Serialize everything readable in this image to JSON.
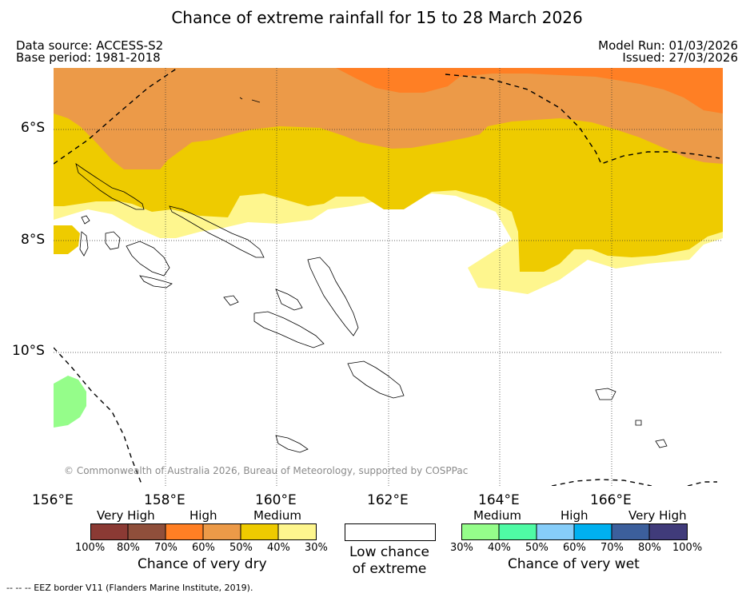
{
  "title": "Chance of extreme rainfall for 15 to 28 March 2026",
  "meta": {
    "data_source": "Data source: ACCESS-S2",
    "base_period": "Base period: 1981-2018",
    "model_run": "Model Run: 01/03/2026",
    "issued": "Issued: 27/03/2026"
  },
  "latitude_labels": [
    "6°S",
    "8°S",
    "10°S"
  ],
  "longitude_labels": [
    "156°E",
    "158°E",
    "160°E",
    "162°E",
    "164°E",
    "166°E"
  ],
  "copyright": "© Commonwealth of Australia 2026, Bureau of Meteorology, supported by COSPPac",
  "dry_legend": {
    "categories": [
      "Very High",
      "High",
      "Medium"
    ],
    "colors": [
      "#8b3a34",
      "#8f4f3b",
      "#ff7f24",
      "#ec9a48",
      "#eecb00",
      "#fef68e"
    ],
    "ticks": [
      "100%",
      "80%",
      "70%",
      "60%",
      "50%",
      "40%",
      "30%"
    ],
    "label": "Chance of very dry"
  },
  "low_legend": {
    "label_line1": "Low chance",
    "label_line2": "of extreme"
  },
  "wet_legend": {
    "categories": [
      "Medium",
      "High",
      "Very High"
    ],
    "colors": [
      "#95fd8a",
      "#4ffba5",
      "#86cdf9",
      "#00b0f0",
      "#3c5f9c",
      "#403b7a"
    ],
    "ticks": [
      "30%",
      "40%",
      "50%",
      "60%",
      "70%",
      "80%",
      "100%"
    ],
    "label": "Chance of very wet"
  },
  "eez_note": "--  --  -- EEZ border V11 (Flanders Marine Institute, 2019)."
}
